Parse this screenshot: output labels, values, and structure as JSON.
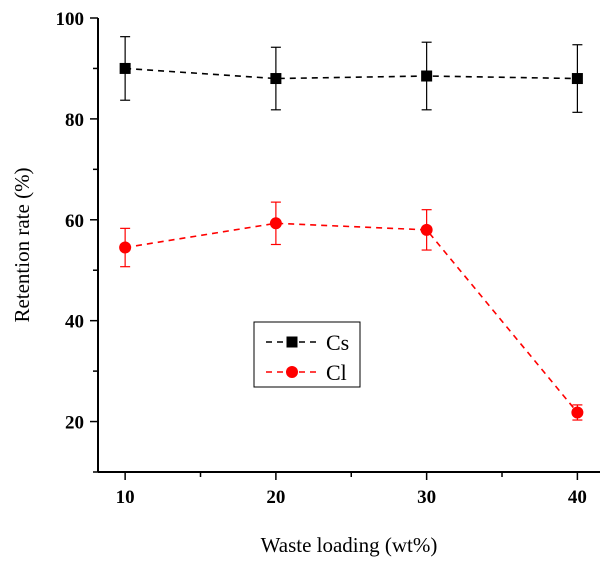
{
  "chart_data": {
    "type": "line",
    "xlabel": "Waste loading (wt%)",
    "ylabel": "Retention rate (%)",
    "x": [
      10,
      20,
      30,
      40
    ],
    "xlim": [
      8.2,
      41.5
    ],
    "ylim": [
      10,
      100
    ],
    "xticks": [
      10,
      20,
      30,
      40
    ],
    "yticks": [
      20,
      40,
      60,
      80,
      100
    ],
    "xtick_labels": [
      "10",
      "20",
      "30",
      "40"
    ],
    "ytick_labels": [
      "20",
      "40",
      "60",
      "80",
      "100"
    ],
    "grid": false,
    "legend_position": "center-left",
    "series": [
      {
        "name": "Cs",
        "marker": "square",
        "color": "#000000",
        "values": [
          90.0,
          88.0,
          88.5,
          88.0
        ],
        "error": [
          6.3,
          6.2,
          6.7,
          6.7
        ]
      },
      {
        "name": "Cl",
        "marker": "circle",
        "color": "#ff0000",
        "values": [
          54.5,
          59.3,
          58.0,
          21.8
        ],
        "error": [
          3.8,
          4.2,
          4.0,
          1.5
        ]
      }
    ]
  }
}
